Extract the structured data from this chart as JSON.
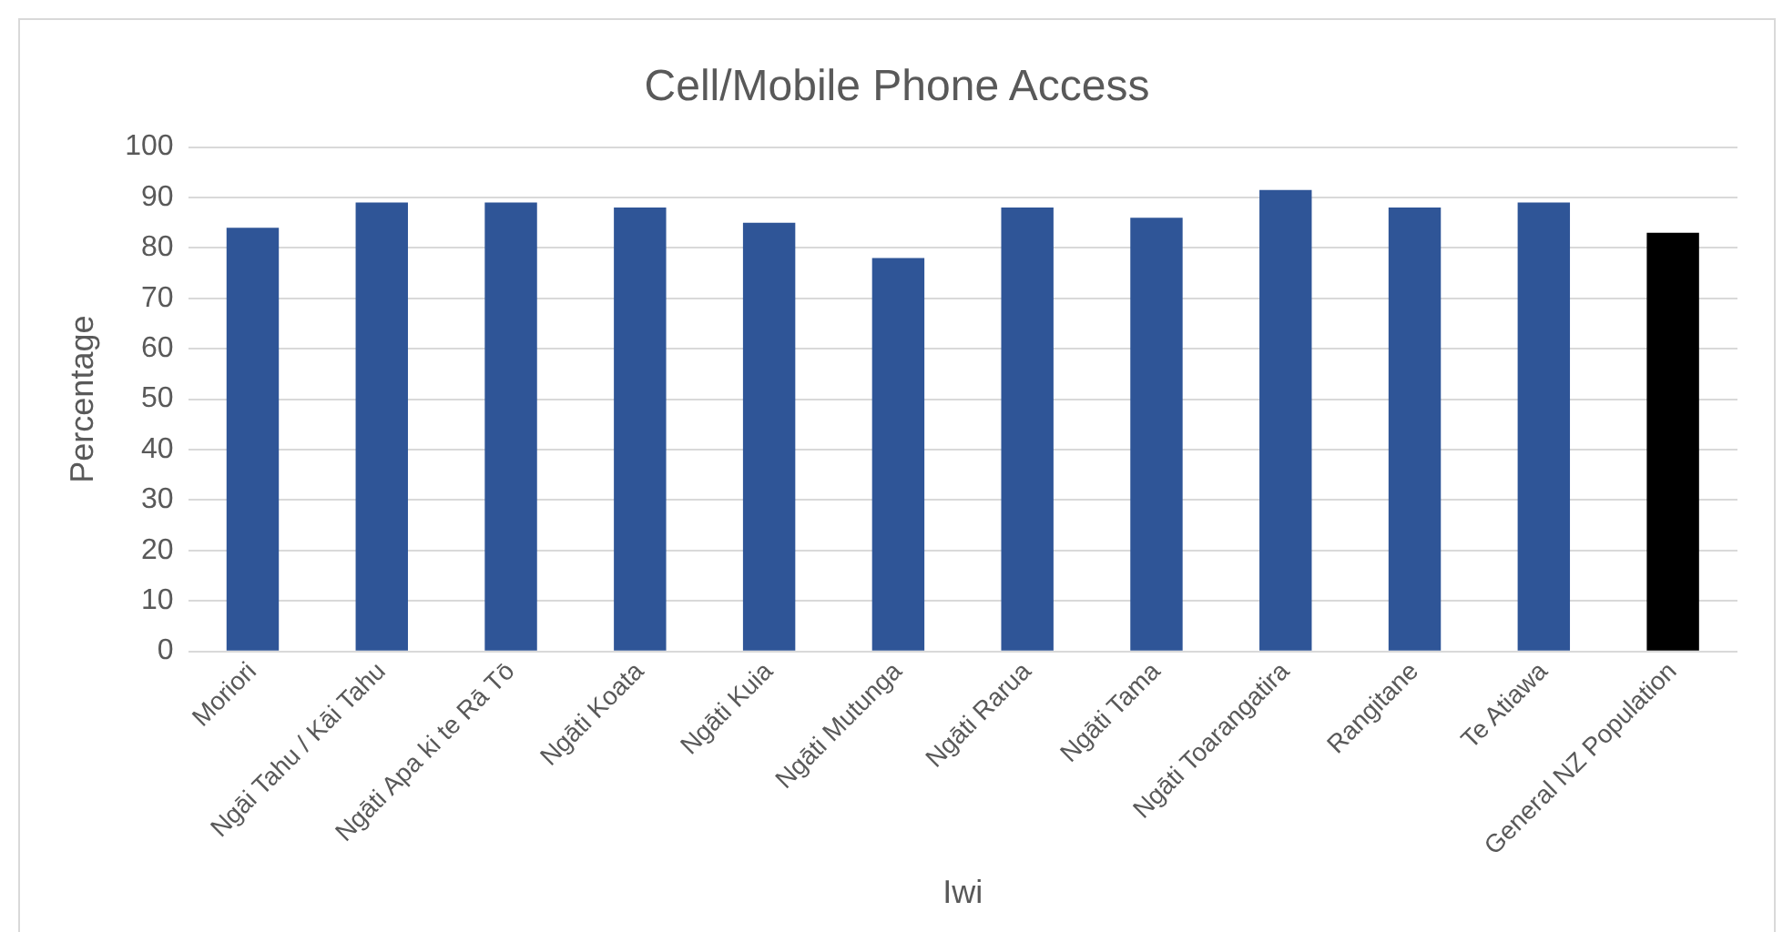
{
  "chart_data": {
    "type": "bar",
    "title": "Cell/Mobile Phone Access",
    "xlabel": "Iwi",
    "ylabel": "Percentage",
    "categories": [
      "Moriori",
      "Ngāi Tahu / Kāi Tahu",
      "Ngāti Apa ki te Rā Tō",
      "Ngāti Koata",
      "Ngāti Kuia",
      "Ngāti Mutunga",
      "Ngāti Rarua",
      "Ngāti Tama",
      "Ngāti Toarangatira",
      "Rangitane",
      "Te Atiawa",
      "General NZ Population"
    ],
    "values": [
      84,
      89,
      89,
      88,
      85,
      78,
      88,
      86,
      91.5,
      88,
      89,
      83
    ],
    "colors": [
      "#2f5597",
      "#2f5597",
      "#2f5597",
      "#2f5597",
      "#2f5597",
      "#2f5597",
      "#2f5597",
      "#2f5597",
      "#2f5597",
      "#2f5597",
      "#2f5597",
      "#000000"
    ],
    "ylim": [
      0,
      100
    ],
    "yticks": [
      0,
      10,
      20,
      30,
      40,
      50,
      60,
      70,
      80,
      90,
      100
    ],
    "grid": "y"
  }
}
